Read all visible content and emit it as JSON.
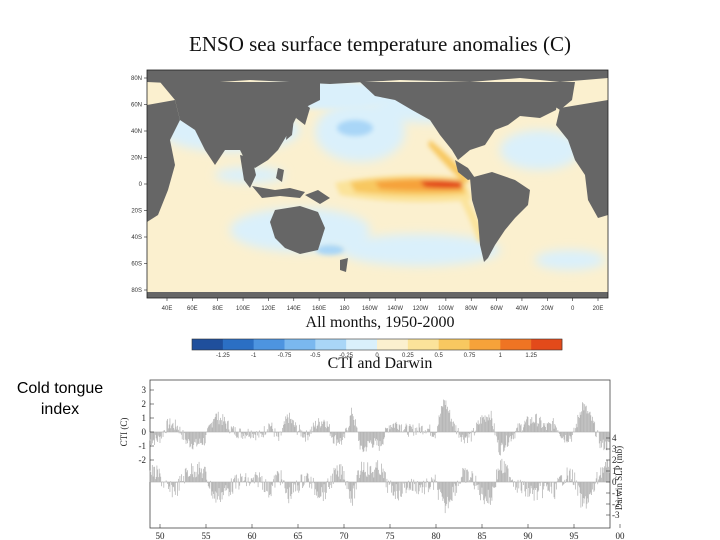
{
  "slide": {
    "side_label": "Cold tongue index"
  },
  "chart_data": [
    {
      "type": "heatmap",
      "title": "ENSO sea surface temperature anomalies (C)",
      "subtitle": "All months, 1950-2000",
      "lat_ticks": [
        "80N",
        "60N",
        "40N",
        "20N",
        "0",
        "20S",
        "40S",
        "60S",
        "80S"
      ],
      "lon_ticks": [
        "40E",
        "60E",
        "80E",
        "100E",
        "120E",
        "140E",
        "160E",
        "180",
        "160W",
        "140W",
        "120W",
        "100W",
        "80W",
        "60W",
        "40W",
        "20W",
        "0",
        "20E"
      ],
      "colorbar": {
        "ticks": [
          "-1.25",
          "-1",
          "-0.75",
          "-0.5",
          "-0.25",
          "0",
          "0.25",
          "0.5",
          "0.75",
          "1",
          "1.25"
        ],
        "colors": [
          "#1f4f9c",
          "#2b6fc4",
          "#4d94e0",
          "#7ab8ef",
          "#a9d6f7",
          "#daf0fb",
          "#fbf0cf",
          "#fbe39a",
          "#f8c860",
          "#f6a23a",
          "#ef7423",
          "#e34a1a"
        ]
      },
      "colors": {
        "land": "#666666",
        "ocean_base": "#fbf0cf"
      }
    },
    {
      "type": "area",
      "title": "CTI and Darwin",
      "ylabel_left": "CTI (C)",
      "ylabel_right": "Darwin SLP (mb)",
      "left_ticks": [
        "3",
        "2",
        "1",
        "0",
        "-1",
        "-2"
      ],
      "right_ticks": [
        "4",
        "3",
        "2",
        "1",
        "0",
        "-1",
        "-2",
        "-3"
      ],
      "x_ticks": [
        "50",
        "55",
        "60",
        "65",
        "70",
        "75",
        "80",
        "85",
        "90",
        "95",
        "00"
      ],
      "x_range": [
        1950,
        2000
      ],
      "cti_range": [
        -3,
        3
      ],
      "series": [
        {
          "name": "CTI (C)",
          "color": "#bbbbbb",
          "values": [
            -0.6,
            -0.5,
            0.6,
            0.4,
            -0.7,
            -0.9,
            -0.6,
            1.2,
            0.8,
            0.1,
            -0.1,
            0.0,
            -0.3,
            0.6,
            -0.6,
            1.1,
            0.2,
            -0.3,
            0.5,
            0.9,
            -0.5,
            -0.7,
            1.5,
            -1.4,
            -0.7,
            -1.0,
            0.5,
            0.6,
            0.1,
            0.2,
            0.3,
            -0.1,
            2.3,
            0.5,
            -0.4,
            -0.3,
            0.9,
            1.3,
            -1.3,
            -0.5,
            0.2,
            0.7,
            0.9,
            0.3,
            0.6,
            -0.4,
            -0.3,
            2.0,
            0.9,
            -0.9,
            -1.0
          ]
        },
        {
          "name": "Darwin SLP (mb)",
          "color": "#bbbbbb",
          "values": [
            -1.0,
            -0.6,
            0.8,
            0.5,
            -0.9,
            -1.2,
            -0.8,
            1.4,
            1.0,
            0.3,
            -0.2,
            0.1,
            -0.4,
            0.9,
            -0.8,
            1.3,
            0.4,
            -0.5,
            0.7,
            1.0,
            -0.6,
            -1.0,
            1.6,
            -1.6,
            -0.9,
            -1.3,
            0.6,
            0.9,
            0.3,
            0.4,
            0.5,
            0.1,
            2.4,
            0.7,
            -0.6,
            -0.4,
            1.1,
            1.6,
            -1.5,
            -0.8,
            0.3,
            0.8,
            1.1,
            0.5,
            0.8,
            -0.6,
            -0.5,
            2.1,
            1.2,
            -1.1,
            -1.3
          ]
        }
      ]
    }
  ]
}
